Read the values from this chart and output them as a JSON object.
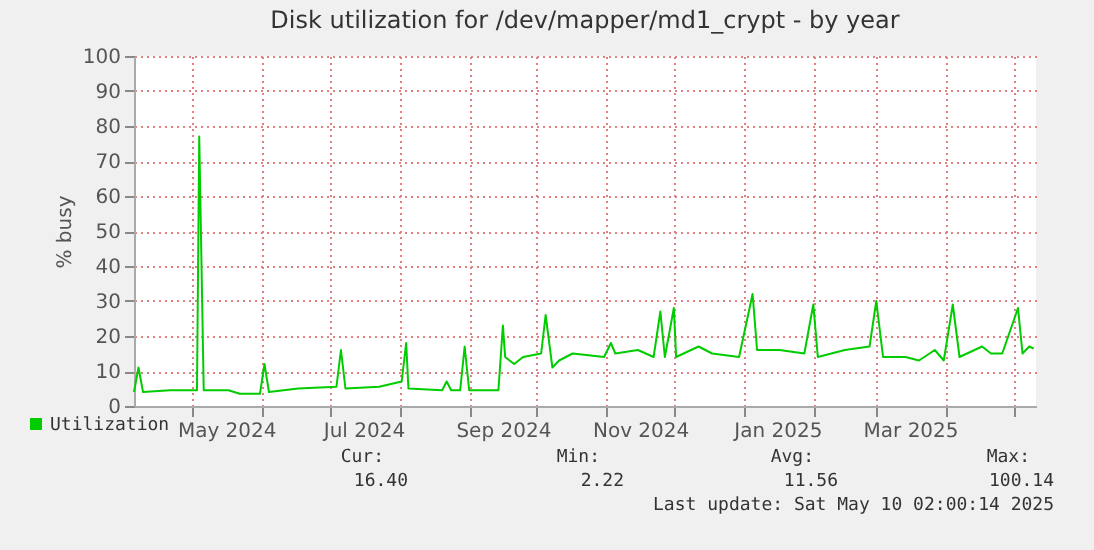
{
  "chart_data": {
    "type": "line",
    "title": "Disk utilization for /dev/mapper/md1_crypt - by year",
    "ylabel": "% busy",
    "x": [
      "2024-04-05",
      "2024-04-07",
      "2024-04-09",
      "2024-04-21",
      "2024-05-03",
      "2024-05-04",
      "2024-05-06",
      "2024-05-17",
      "2024-05-22",
      "2024-05-31",
      "2024-06-02",
      "2024-06-04",
      "2024-06-17",
      "2024-07-04",
      "2024-07-06",
      "2024-07-08",
      "2024-07-23",
      "2024-08-02",
      "2024-08-04",
      "2024-08-05",
      "2024-08-20",
      "2024-08-22",
      "2024-08-24",
      "2024-08-28",
      "2024-08-30",
      "2024-09-01",
      "2024-09-14",
      "2024-09-16",
      "2024-09-17",
      "2024-09-21",
      "2024-09-25",
      "2024-10-03",
      "2024-10-05",
      "2024-10-08",
      "2024-10-11",
      "2024-10-17",
      "2024-10-31",
      "2024-11-03",
      "2024-11-05",
      "2024-11-15",
      "2024-11-22",
      "2024-11-25",
      "2024-11-27",
      "2024-12-01",
      "2024-12-02",
      "2024-12-12",
      "2024-12-18",
      "2024-12-30",
      "2025-01-05",
      "2025-01-07",
      "2025-01-17",
      "2025-01-28",
      "2025-02-01",
      "2025-02-03",
      "2025-02-15",
      "2025-02-26",
      "2025-03-01",
      "2025-03-04",
      "2025-03-14",
      "2025-03-20",
      "2025-03-27",
      "2025-03-31",
      "2025-04-04",
      "2025-04-07",
      "2025-04-17",
      "2025-04-21",
      "2025-04-26",
      "2025-05-03",
      "2025-05-05",
      "2025-05-08",
      "2025-05-10"
    ],
    "series": [
      {
        "name": "Utilization",
        "color": "#00cc00",
        "values": [
          4,
          11,
          4,
          4.5,
          4.5,
          77,
          4.5,
          4.5,
          3.5,
          3.5,
          12,
          4,
          5,
          5.5,
          16,
          5,
          5.5,
          7,
          18,
          5,
          4.5,
          7,
          4.5,
          4.5,
          17,
          4.5,
          4.5,
          23,
          14,
          12,
          14,
          15,
          26,
          11,
          13,
          15,
          14,
          18,
          15,
          16,
          14,
          27,
          14,
          28,
          14,
          17,
          15,
          14,
          32,
          16,
          16,
          15,
          29,
          14,
          16,
          17,
          30,
          14,
          14,
          13,
          16,
          13,
          29,
          14,
          17,
          15,
          15,
          28,
          15,
          17,
          16.4
        ]
      }
    ],
    "xlim": [
      "2024-04-05",
      "2025-05-11"
    ],
    "xticks": [
      {
        "value": "2024-05-01",
        "label": null
      },
      {
        "value": "2024-05-16",
        "label": "May 2024"
      },
      {
        "value": "2024-06-01",
        "label": null
      },
      {
        "value": "2024-07-01",
        "label": null
      },
      {
        "value": "2024-07-16",
        "label": "Jul 2024"
      },
      {
        "value": "2024-08-01",
        "label": null
      },
      {
        "value": "2024-09-01",
        "label": null
      },
      {
        "value": "2024-09-16",
        "label": "Sep 2024"
      },
      {
        "value": "2024-10-01",
        "label": null
      },
      {
        "value": "2024-11-01",
        "label": null
      },
      {
        "value": "2024-11-16",
        "label": "Nov 2024"
      },
      {
        "value": "2024-12-01",
        "label": null
      },
      {
        "value": "2025-01-01",
        "label": null
      },
      {
        "value": "2025-01-16",
        "label": "Jan 2025"
      },
      {
        "value": "2025-02-01",
        "label": null
      },
      {
        "value": "2025-03-01",
        "label": null
      },
      {
        "value": "2025-03-16",
        "label": "Mar 2025"
      },
      {
        "value": "2025-04-01",
        "label": null
      },
      {
        "value": "2025-05-01",
        "label": null
      }
    ],
    "ylim": [
      0,
      100
    ],
    "yticks": [
      0,
      10,
      20,
      30,
      40,
      50,
      60,
      70,
      80,
      90,
      100
    ],
    "grid": true,
    "legend": "bottom left",
    "line_style": "solid",
    "annotations": [
      "Cur:",
      "16.40",
      "Min:",
      "2.22",
      "Avg:",
      "11.56",
      "Max:",
      "100.14",
      "Last update: Sat May 10 02:00:14 2025"
    ]
  }
}
